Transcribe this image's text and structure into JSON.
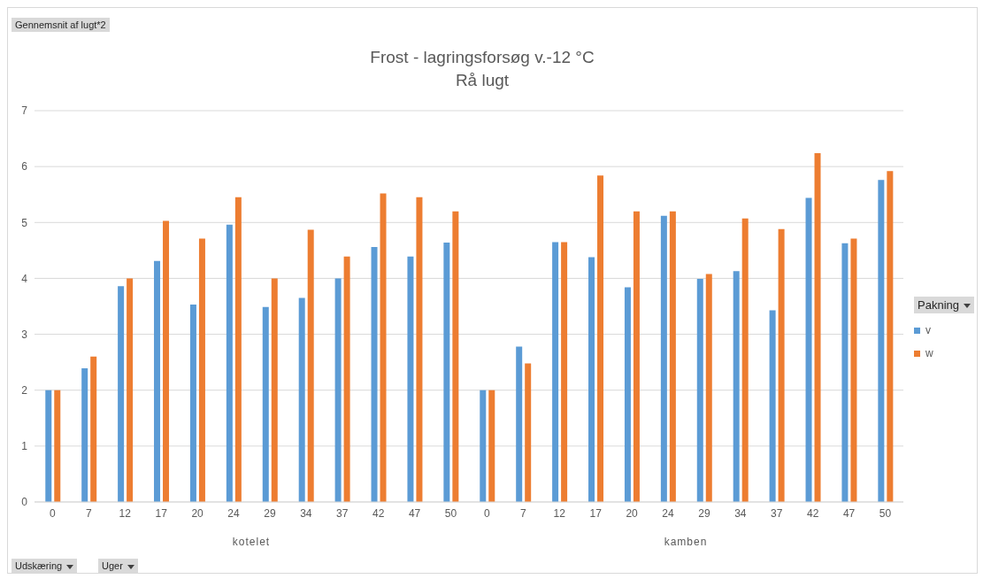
{
  "chart_data": {
    "type": "bar",
    "title": "Frost - lagringsforsøg v.-12 °C",
    "subtitle": "Rå lugt",
    "categories": [
      "0",
      "7",
      "12",
      "17",
      "20",
      "24",
      "29",
      "34",
      "37",
      "42",
      "47",
      "50",
      "0",
      "7",
      "12",
      "17",
      "20",
      "24",
      "29",
      "34",
      "37",
      "42",
      "47",
      "50"
    ],
    "series": [
      {
        "name": "v",
        "color": "#5b9bd5",
        "values": [
          2,
          2.39,
          3.86,
          4.31,
          3.53,
          4.96,
          3.49,
          3.65,
          4.0,
          4.56,
          4.39,
          4.64,
          2,
          2.78,
          4.65,
          4.38,
          3.84,
          5.12,
          3.99,
          4.13,
          3.43,
          5.44,
          4.63,
          5.76
        ]
      },
      {
        "name": "w",
        "color": "#ed7d31",
        "values": [
          2,
          2.6,
          4.0,
          5.03,
          4.71,
          5.45,
          4.0,
          4.87,
          4.39,
          5.52,
          5.45,
          5.2,
          2,
          2.48,
          4.65,
          5.84,
          5.2,
          5.2,
          4.08,
          5.07,
          4.88,
          6.24,
          4.71,
          5.92
        ]
      }
    ],
    "ylim": [
      0,
      7
    ],
    "yticks": [
      0,
      1,
      2,
      3,
      4,
      5,
      6,
      7
    ],
    "grid": "y",
    "legend": "right",
    "legend_title": "Pakning",
    "annotations": [
      "Gennemsnit af lugt*2",
      "kotelet",
      "kamben",
      "Udskæring",
      "Uger"
    ]
  }
}
